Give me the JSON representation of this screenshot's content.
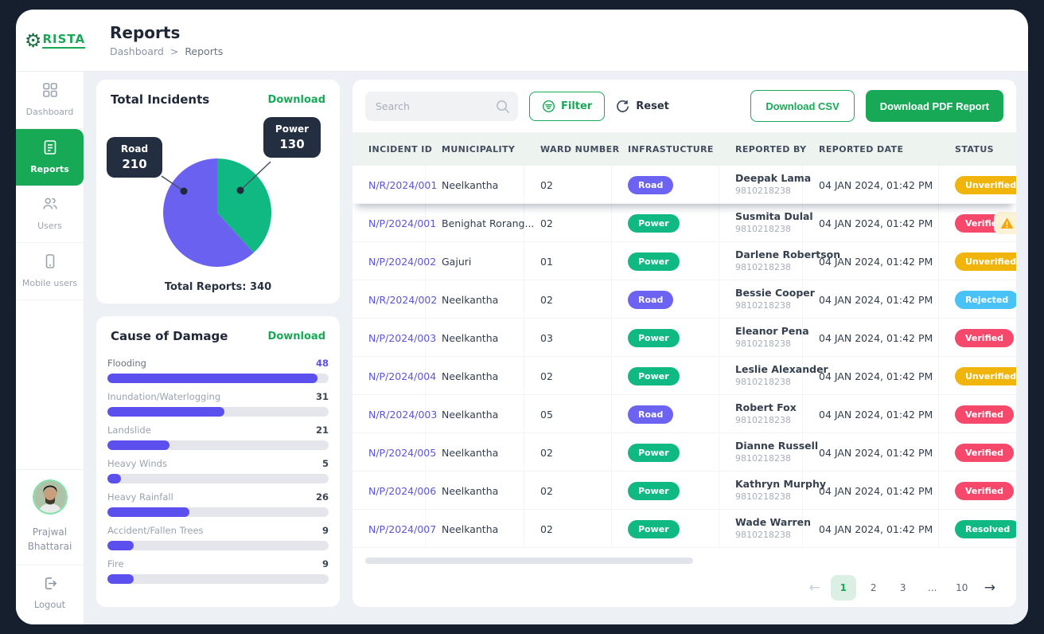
{
  "brand": {
    "name": "CRISTA",
    "display_text": "RISTA",
    "gear_glyph": "⚙"
  },
  "header": {
    "title": "Reports",
    "breadcrumb": [
      "Dashboard",
      "Reports"
    ],
    "breadcrumb_separator": ">"
  },
  "sidebar": {
    "items": [
      {
        "label": "Dashboard",
        "icon": "grid-icon",
        "active": false
      },
      {
        "label": "Reports",
        "icon": "document-icon",
        "active": true
      },
      {
        "label": "Users",
        "icon": "users-icon",
        "active": false
      },
      {
        "label": "Mobile users",
        "icon": "mobile-icon",
        "active": false
      }
    ],
    "user": {
      "name": "Prajwal Bhattarai"
    },
    "logout_label": "Logout"
  },
  "chart_data": [
    {
      "type": "pie",
      "title": "Total Incidents",
      "download_label": "Download",
      "labels": [
        "Road",
        "Power"
      ],
      "values": [
        210,
        130
      ],
      "colors": [
        "#6A61F1",
        "#10B981"
      ],
      "draw_order": [
        1,
        0
      ],
      "total_label": "Total Reports: 340",
      "legend_position": "callout-tooltips"
    },
    {
      "type": "bar",
      "orientation": "horizontal",
      "title": "Cause of Damage",
      "download_label": "Download",
      "categories": [
        "Flooding",
        "Inundation/Waterlogging",
        "Landslide",
        "Heavy Winds",
        "Heavy Rainfall",
        "Accident/Fallen Trees",
        "Fire"
      ],
      "values": [
        48,
        31,
        21,
        5,
        26,
        9,
        9
      ],
      "bar_pcts": [
        95,
        53,
        28,
        6,
        37,
        12,
        12
      ],
      "highlight_index": 0,
      "bar_color": "#5B50EE",
      "track_color": "#E4E6EB"
    }
  ],
  "toolbar": {
    "search_placeholder": "Search",
    "filter_label": "Filter",
    "reset_label": "Reset",
    "download_csv_label": "Download CSV",
    "download_pdf_label": "Download PDF Report"
  },
  "table": {
    "columns": [
      "INCIDENT ID",
      "MUNICIPALITY",
      "WARD NUMBER",
      "INFRASTUCTURE",
      "REPORTED BY",
      "REPORTED DATE",
      "STATUS"
    ],
    "rows": [
      {
        "id": "N/R/2024/001",
        "municipality": "Neelkantha",
        "ward": "02",
        "infra": "Road",
        "reporter": "Deepak Lama",
        "phone": "9810218238",
        "date": "04 JAN 2024, 01:42 PM",
        "status": "Unverified",
        "warning": false,
        "elevated": true
      },
      {
        "id": "N/P/2024/001",
        "municipality": "Benighat Rorang...",
        "ward": "02",
        "infra": "Power",
        "reporter": "Susmita Dulal",
        "phone": "9810218238",
        "date": "04 JAN 2024, 01:42 PM",
        "status": "Verified",
        "warning": true,
        "elevated": false
      },
      {
        "id": "N/P/2024/002",
        "municipality": "Gajuri",
        "ward": "01",
        "infra": "Power",
        "reporter": "Darlene Robertson",
        "phone": "9810218238",
        "date": "04 JAN 2024, 01:42 PM",
        "status": "Unverified",
        "warning": false,
        "elevated": false
      },
      {
        "id": "N/R/2024/002",
        "municipality": "Neelkantha",
        "ward": "02",
        "infra": "Road",
        "reporter": "Bessie Cooper",
        "phone": "9810218238",
        "date": "04 JAN 2024, 01:42 PM",
        "status": "Rejected",
        "warning": false,
        "elevated": false
      },
      {
        "id": "N/P/2024/003",
        "municipality": "Neelkantha",
        "ward": "03",
        "infra": "Power",
        "reporter": "Eleanor Pena",
        "phone": "9810218238",
        "date": "04 JAN 2024, 01:42 PM",
        "status": "Verified",
        "warning": false,
        "elevated": false
      },
      {
        "id": "N/P/2024/004",
        "municipality": "Neelkantha",
        "ward": "02",
        "infra": "Power",
        "reporter": "Leslie Alexander",
        "phone": "9810218238",
        "date": "04 JAN 2024, 01:42 PM",
        "status": "Unverified",
        "warning": false,
        "elevated": false
      },
      {
        "id": "N/R/2024/003",
        "municipality": "Neelkantha",
        "ward": "05",
        "infra": "Road",
        "reporter": "Robert Fox",
        "phone": "9810218238",
        "date": "04 JAN 2024, 01:42 PM",
        "status": "Verified",
        "warning": false,
        "elevated": false
      },
      {
        "id": "N/P/2024/005",
        "municipality": "Neelkantha",
        "ward": "02",
        "infra": "Power",
        "reporter": "Dianne Russell",
        "phone": "9810218238",
        "date": "04 JAN 2024, 01:42 PM",
        "status": "Verified",
        "warning": false,
        "elevated": false
      },
      {
        "id": "N/P/2024/006",
        "municipality": "Neelkantha",
        "ward": "02",
        "infra": "Power",
        "reporter": "Kathryn Murphy",
        "phone": "9810218238",
        "date": "04 JAN 2024, 01:42 PM",
        "status": "Verified",
        "warning": false,
        "elevated": false
      },
      {
        "id": "N/P/2024/007",
        "municipality": "Neelkantha",
        "ward": "02",
        "infra": "Power",
        "reporter": "Wade Warren",
        "phone": "9810218238",
        "date": "04 JAN 2024, 01:42 PM",
        "status": "Resolved",
        "warning": false,
        "elevated": false
      }
    ]
  },
  "pagination": {
    "pages": [
      "1",
      "2",
      "3",
      "...",
      "10"
    ],
    "active_page": "1",
    "prev_enabled": false,
    "next_enabled": true,
    "prev_glyph": "←",
    "next_glyph": "→"
  },
  "colors": {
    "accent_green": "#18A957",
    "accent_purple": "#6258EF",
    "infra": {
      "Road": "#6C63F3",
      "Power": "#10B981"
    },
    "status": {
      "Unverified": "#F1B40A",
      "Verified": "#F6486B",
      "Rejected": "#49C3F7",
      "Resolved": "#10B981"
    },
    "window_bg": "#161F2D",
    "table_header_bg": "#EDF4F0"
  }
}
